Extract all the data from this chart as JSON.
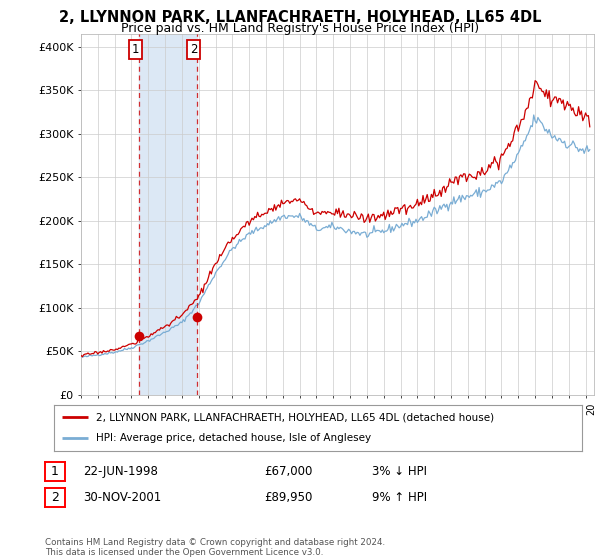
{
  "title": "2, LLYNNON PARK, LLANFACHRAETH, HOLYHEAD, LL65 4DL",
  "subtitle": "Price paid vs. HM Land Registry's House Price Index (HPI)",
  "title_fontsize": 10.5,
  "subtitle_fontsize": 9,
  "ylabel_ticks": [
    "£0",
    "£50K",
    "£100K",
    "£150K",
    "£200K",
    "£250K",
    "£300K",
    "£350K",
    "£400K"
  ],
  "ylim": [
    0,
    415000
  ],
  "xlim_start": 1995.0,
  "xlim_end": 2025.5,
  "sale1_x": 1998.47,
  "sale1_y": 67000,
  "sale2_x": 2001.92,
  "sale2_y": 89950,
  "legend_line1": "2, LLYNNON PARK, LLANFACHRAETH, HOLYHEAD, LL65 4DL (detached house)",
  "legend_line2": "HPI: Average price, detached house, Isle of Anglesey",
  "table_row1": [
    "1",
    "22-JUN-1998",
    "£67,000",
    "3% ↓ HPI"
  ],
  "table_row2": [
    "2",
    "30-NOV-2001",
    "£89,950",
    "9% ↑ HPI"
  ],
  "footer": "Contains HM Land Registry data © Crown copyright and database right 2024.\nThis data is licensed under the Open Government Licence v3.0.",
  "line_color_red": "#cc0000",
  "line_color_blue": "#7aadd4",
  "background_color": "#ffffff",
  "grid_color": "#cccccc",
  "span_color": "#dce8f5",
  "anchor_years": [
    1995,
    1996,
    1997,
    1998,
    1999,
    2000,
    2001,
    2002,
    2003,
    2004,
    2005,
    2006,
    2007,
    2008,
    2009,
    2010,
    2011,
    2012,
    2013,
    2014,
    2015,
    2016,
    2017,
    2018,
    2019,
    2020,
    2021,
    2022,
    2023,
    2024,
    2025
  ],
  "hpi_vals": [
    43000,
    46000,
    49000,
    54000,
    62000,
    72000,
    83000,
    105000,
    140000,
    168000,
    185000,
    195000,
    205000,
    205000,
    190000,
    193000,
    188000,
    184000,
    188000,
    195000,
    200000,
    210000,
    222000,
    228000,
    234000,
    245000,
    275000,
    318000,
    298000,
    288000,
    280000
  ],
  "red_offset": [
    2000,
    2500,
    3000,
    4000,
    5000,
    7000,
    8000,
    8000,
    10000,
    12000,
    14000,
    15000,
    16000,
    18000,
    18000,
    18000,
    18000,
    18000,
    18000,
    18000,
    18000,
    20000,
    22000,
    24000,
    26000,
    28000,
    30000,
    38000,
    42000,
    45000,
    40000
  ]
}
